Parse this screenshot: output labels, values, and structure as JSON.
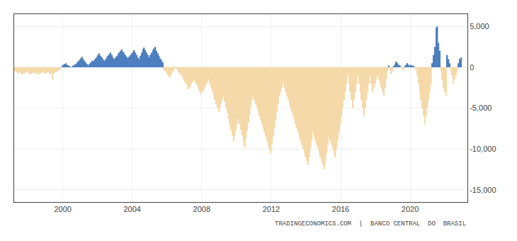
{
  "chart_data": {
    "type": "bar",
    "annotations": [
      "TRADINGECONOMICS.COM  |  BANCO CENTRAL  DO  BRASIL"
    ],
    "x": [
      1997.25,
      1997.3215,
      1997.3931,
      1997.4646,
      1997.5361,
      1997.6076,
      1997.6792,
      1997.7507,
      1997.8222,
      1997.89375,
      1997.9653,
      1998.0368,
      1998.1083,
      1998.1799,
      1998.2514,
      1998.3229,
      1998.3944,
      1998.466,
      1998.5375,
      1998.609,
      1998.6806,
      1998.7521,
      1998.8236,
      1998.8951,
      1998.9667,
      1999.0382,
      1999.1097,
      1999.18125,
      1999.2528,
      1999.3243,
      1999.3958,
      1999.4674,
      1999.5389,
      1999.6104,
      1999.6819,
      1999.7535,
      1999.825,
      1999.8965,
      1999.9681,
      2000.0396,
      2000.1111,
      2000.1826,
      2000.2542,
      2000.3257,
      2000.3972,
      2000.46875,
      2000.5403,
      2000.6118,
      2000.6833,
      2000.7549,
      2000.8264,
      2000.8979,
      2000.9694,
      2001.041,
      2001.1125,
      2001.184,
      2001.2556,
      2001.3271,
      2001.3986,
      2001.4701,
      2001.5417,
      2001.6132,
      2001.6847,
      2001.75625,
      2001.8278,
      2001.8993,
      2001.9708,
      2002.0424,
      2002.1139,
      2002.1854,
      2002.2569,
      2002.3285,
      2002.4,
      2002.4715,
      2002.5431,
      2002.6146,
      2002.6861,
      2002.7576,
      2002.8292,
      2002.9007,
      2002.9722,
      2003.04375,
      2003.1153,
      2003.1868,
      2003.2583,
      2003.3299,
      2003.4014,
      2003.4729,
      2003.5444,
      2003.616,
      2003.6875,
      2003.759,
      2003.8306,
      2003.9021,
      2003.9736,
      2004.0451,
      2004.1167,
      2004.1882,
      2004.2597,
      2004.33125,
      2004.4028,
      2004.4743,
      2004.5458,
      2004.6174,
      2004.6889,
      2004.7604,
      2004.8319,
      2004.9035,
      2004.975,
      2005.0465,
      2005.1181,
      2005.1896,
      2005.2611,
      2005.3326,
      2005.4042,
      2005.4757,
      2005.5472,
      2005.61875,
      2005.6903,
      2005.7618,
      2005.8333,
      2005.9049,
      2005.9764,
      2006.0479,
      2006.1194,
      2006.191,
      2006.2625,
      2006.334,
      2006.4056,
      2006.4771,
      2006.5486,
      2006.6201,
      2006.6917,
      2006.7632,
      2006.8347,
      2006.90625,
      2006.9778,
      2007.0493,
      2007.1208,
      2007.1924,
      2007.2639,
      2007.3354,
      2007.4069,
      2007.4785,
      2007.55,
      2007.6215,
      2007.6931,
      2007.7646,
      2007.8361,
      2007.9076,
      2007.9792,
      2008.0507,
      2008.1222,
      2008.19375,
      2008.2653,
      2008.3368,
      2008.4083,
      2008.4799,
      2008.5514,
      2008.6229,
      2008.6944,
      2008.766,
      2008.8375,
      2008.909,
      2008.9806,
      2009.0521,
      2009.1236,
      2009.1951,
      2009.2667,
      2009.3382,
      2009.4097,
      2009.48125,
      2009.5528,
      2009.6243,
      2009.6958,
      2009.7674,
      2009.8389,
      2009.9104,
      2009.9819,
      2010.0535,
      2010.125,
      2010.1965,
      2010.2681,
      2010.3396,
      2010.4111,
      2010.4826,
      2010.5542,
      2010.6257,
      2010.6972,
      2010.76875,
      2010.8403,
      2010.9118,
      2010.9833,
      2011.0549,
      2011.1264,
      2011.1979,
      2011.2694,
      2011.341,
      2011.4125,
      2011.484,
      2011.5556,
      2011.6271,
      2011.6986,
      2011.7701,
      2011.8417,
      2011.9132,
      2011.9847,
      2012.05625,
      2012.1278,
      2012.1993,
      2012.2708,
      2012.3424,
      2012.4139,
      2012.4854,
      2012.5569,
      2012.6285,
      2012.7,
      2012.7715,
      2012.8431,
      2012.9146,
      2012.9861,
      2013.0576,
      2013.1292,
      2013.2007,
      2013.2722,
      2013.34375,
      2013.4153,
      2013.4868,
      2013.5583,
      2013.6299,
      2013.7014,
      2013.7729,
      2013.8444,
      2013.916,
      2013.9875,
      2014.059,
      2014.1306,
      2014.2021,
      2014.2736,
      2014.3451,
      2014.4167,
      2014.4882,
      2014.5597,
      2014.63125,
      2014.7028,
      2014.7743,
      2014.8458,
      2014.9174,
      2014.9889,
      2015.0604,
      2015.1319,
      2015.2035,
      2015.275,
      2015.3465,
      2015.4181,
      2015.4896,
      2015.5611,
      2015.6326,
      2015.7042,
      2015.7757,
      2015.8472,
      2015.91875,
      2015.9903,
      2016.0618,
      2016.1333,
      2016.2049,
      2016.2764,
      2016.3479,
      2016.4194,
      2016.491,
      2016.5625,
      2016.634,
      2016.7056,
      2016.7771,
      2016.8486,
      2016.9201,
      2016.9917,
      2017.0632,
      2017.1347,
      2017.20625,
      2017.2778,
      2017.3493,
      2017.4208,
      2017.4924,
      2017.5639,
      2017.6354,
      2017.7069,
      2017.7785,
      2017.85,
      2017.9215,
      2017.9931,
      2018.0646,
      2018.1361,
      2018.2076,
      2018.2792,
      2018.3507,
      2018.4222,
      2018.49375,
      2018.5653,
      2018.6368,
      2018.7083,
      2018.7799,
      2018.8514,
      2018.9229,
      2018.9944,
      2019.066,
      2019.1375,
      2019.209,
      2019.2806,
      2019.3521,
      2019.4236,
      2019.4951,
      2019.5667,
      2019.6382,
      2019.7097,
      2019.78125,
      2019.8528,
      2019.9243,
      2019.9958,
      2020.0674,
      2020.1389,
      2020.2104,
      2020.2819,
      2020.3535,
      2020.425,
      2020.4965,
      2020.5681,
      2020.6396,
      2020.7111,
      2020.7826,
      2020.8542,
      2020.9257,
      2020.9972,
      2021.06875,
      2021.1403,
      2021.2118,
      2021.2833,
      2021.3549,
      2021.4264,
      2021.4979,
      2021.5694,
      2021.641,
      2021.7125,
      2021.784,
      2021.8556,
      2021.9271,
      2021.9986,
      2022.0701,
      2022.1417,
      2022.2132,
      2022.2847,
      2022.35625,
      2022.4278,
      2022.4993,
      2022.5708,
      2022.6424,
      2022.7139,
      2022.7854,
      2022.8569,
      2022.9285
    ],
    "values": [
      -500,
      -400,
      -600,
      -800,
      -700,
      -600,
      -900,
      -700,
      -800,
      -600,
      -500,
      -700,
      -800,
      -900,
      -700,
      -600,
      -800,
      -700,
      -500,
      -900,
      -800,
      -700,
      -600,
      -500,
      -700,
      -800,
      -600,
      -500,
      -900,
      -700,
      -1500,
      -800,
      -700,
      -600,
      -500,
      -400,
      -300,
      -200,
      100,
      300,
      400,
      500,
      300,
      200,
      100,
      -100,
      50,
      200,
      300,
      400,
      600,
      700,
      900,
      1100,
      1300,
      1000,
      800,
      600,
      400,
      200,
      400,
      600,
      800,
      700,
      900,
      1100,
      1300,
      1500,
      1700,
      1400,
      1200,
      1000,
      800,
      1000,
      1200,
      1400,
      1600,
      1800,
      1500,
      1200,
      1000,
      1200,
      1400,
      1600,
      1800,
      2000,
      2200,
      1900,
      1700,
      1500,
      1300,
      1100,
      1300,
      1500,
      1700,
      1900,
      2100,
      1800,
      1500,
      1200,
      1000,
      1400,
      1800,
      2200,
      2400,
      2100,
      1800,
      1500,
      1200,
      1500,
      1800,
      2100,
      2300,
      2500,
      2000,
      1700,
      1400,
      1100,
      900,
      600,
      -300,
      -500,
      -700,
      -900,
      -1100,
      -1300,
      -900,
      -600,
      -300,
      -100,
      -200,
      -400,
      -600,
      -800,
      -1000,
      -1200,
      -1500,
      -1800,
      -2100,
      -2400,
      -2700,
      -2400,
      -2100,
      -1800,
      -1500,
      -1800,
      -2100,
      -2400,
      -2700,
      -3000,
      -3300,
      -3000,
      -2700,
      -2400,
      -2100,
      -1800,
      -1500,
      -2000,
      -2500,
      -3000,
      -3500,
      -4000,
      -4500,
      -5000,
      -5500,
      -5000,
      -4500,
      -4000,
      -3500,
      -4200,
      -4900,
      -5600,
      -6300,
      -7000,
      -7700,
      -8400,
      -9100,
      -8400,
      -7700,
      -7000,
      -6300,
      -7000,
      -7700,
      -8400,
      -9100,
      -9800,
      -8800,
      -7800,
      -6800,
      -5800,
      -4800,
      -4000,
      -3500,
      -4000,
      -4500,
      -5000,
      -5500,
      -6000,
      -6500,
      -7000,
      -7500,
      -8000,
      -8500,
      -9000,
      -9500,
      -10000,
      -10500,
      -9500,
      -8500,
      -7500,
      -6500,
      -5500,
      -4500,
      -3500,
      -3000,
      -2500,
      -2000,
      -2500,
      -3000,
      -3500,
      -4000,
      -4500,
      -5000,
      -5500,
      -6000,
      -6500,
      -7000,
      -7500,
      -8000,
      -8500,
      -9000,
      -9500,
      -10000,
      -10500,
      -11000,
      -11500,
      -12000,
      -11000,
      -10000,
      -9000,
      -8000,
      -8500,
      -9000,
      -9500,
      -10000,
      -10500,
      -11000,
      -11500,
      -12000,
      -12500,
      -11500,
      -10500,
      -9500,
      -8500,
      -9000,
      -9500,
      -10000,
      -10500,
      -11000,
      -10000,
      -9000,
      -8000,
      -7000,
      -6000,
      -5000,
      -4000,
      -3000,
      -2000,
      -1000,
      -2000,
      -3000,
      -4000,
      -5000,
      -4000,
      -3000,
      -2000,
      -1000,
      -2000,
      -3000,
      -4000,
      -5000,
      -6000,
      -5000,
      -4000,
      -3000,
      -2000,
      -1000,
      -2000,
      -3000,
      -2500,
      -2000,
      -1500,
      -1000,
      -1500,
      -2000,
      -2500,
      -3000,
      -3500,
      -2500,
      -1500,
      -500,
      200,
      -300,
      -800,
      -400,
      100,
      400,
      700,
      500,
      300,
      200,
      -100,
      -200,
      -400,
      100,
      300,
      500,
      300,
      100,
      300,
      200,
      100,
      -100,
      -200,
      -1000,
      -2000,
      -3000,
      -4000,
      -5000,
      -6000,
      -7000,
      -6000,
      -5000,
      -4000,
      -3000,
      -2000,
      500,
      1500,
      2500,
      4800,
      5000,
      3000,
      2000,
      -500,
      -1500,
      -2500,
      -3000,
      -3500,
      1500,
      1000,
      500,
      -500,
      -1000,
      -2000,
      -1500,
      -1000,
      -500,
      500,
      1000,
      1200
    ],
    "colors": [
      "#f5d9a8",
      "#f5d9a8",
      "#f5d9a8",
      "#f5d9a8",
      "#f5d9a8",
      "#f5d9a8",
      "#f5d9a8",
      "#f5d9a8",
      "#f5d9a8",
      "#f5d9a8",
      "#f5d9a8",
      "#f5d9a8",
      "#f5d9a8",
      "#f5d9a8",
      "#f5d9a8",
      "#f5d9a8",
      "#f5d9a8",
      "#f5d9a8",
      "#f5d9a8",
      "#f5d9a8",
      "#f5d9a8",
      "#f5d9a8",
      "#f5d9a8",
      "#f5d9a8",
      "#f5d9a8",
      "#f5d9a8",
      "#f5d9a8",
      "#f5d9a8",
      "#f5d9a8",
      "#f5d9a8",
      "#f5d9a8",
      "#f5d9a8",
      "#f5d9a8",
      "#f5d9a8",
      "#f5d9a8",
      "#f5d9a8",
      "#f5d9a8",
      "#f5d9a8",
      "#4d7ebf",
      "#4d7ebf",
      "#4d7ebf",
      "#4d7ebf",
      "#4d7ebf",
      "#4d7ebf",
      "#4d7ebf",
      "#f5d9a8",
      "#4d7ebf",
      "#4d7ebf",
      "#4d7ebf",
      "#4d7ebf",
      "#4d7ebf",
      "#4d7ebf",
      "#4d7ebf",
      "#4d7ebf",
      "#4d7ebf",
      "#4d7ebf",
      "#4d7ebf",
      "#4d7ebf",
      "#4d7ebf",
      "#4d7ebf",
      "#4d7ebf",
      "#4d7ebf",
      "#4d7ebf",
      "#4d7ebf",
      "#4d7ebf",
      "#4d7ebf",
      "#4d7ebf",
      "#4d7ebf",
      "#4d7ebf",
      "#4d7ebf",
      "#4d7ebf",
      "#4d7ebf",
      "#4d7ebf",
      "#4d7ebf",
      "#4d7ebf",
      "#4d7ebf",
      "#4d7ebf",
      "#4d7ebf",
      "#4d7ebf",
      "#4d7ebf",
      "#4d7ebf",
      "#4d7ebf",
      "#4d7ebf",
      "#4d7ebf",
      "#4d7ebf",
      "#4d7ebf",
      "#4d7ebf",
      "#4d7ebf",
      "#4d7ebf",
      "#4d7ebf",
      "#4d7ebf",
      "#4d7ebf",
      "#4d7ebf",
      "#4d7ebf",
      "#4d7ebf",
      "#4d7ebf",
      "#4d7ebf",
      "#4d7ebf",
      "#4d7ebf",
      "#4d7ebf",
      "#4d7ebf",
      "#4d7ebf",
      "#4d7ebf",
      "#4d7ebf",
      "#4d7ebf",
      "#4d7ebf",
      "#4d7ebf",
      "#4d7ebf",
      "#4d7ebf",
      "#4d7ebf",
      "#4d7ebf",
      "#4d7ebf",
      "#4d7ebf",
      "#4d7ebf",
      "#4d7ebf",
      "#4d7ebf",
      "#4d7ebf",
      "#4d7ebf",
      "#4d7ebf",
      "#4d7ebf",
      "#f5d9a8",
      "#f5d9a8",
      "#f5d9a8",
      "#f5d9a8",
      "#f5d9a8",
      "#f5d9a8",
      "#f5d9a8",
      "#f5d9a8",
      "#f5d9a8",
      "#f5d9a8",
      "#f5d9a8",
      "#f5d9a8",
      "#f5d9a8",
      "#f5d9a8",
      "#f5d9a8",
      "#f5d9a8",
      "#f5d9a8",
      "#f5d9a8",
      "#f5d9a8",
      "#f5d9a8",
      "#f5d9a8",
      "#f5d9a8",
      "#f5d9a8",
      "#f5d9a8",
      "#f5d9a8",
      "#f5d9a8",
      "#f5d9a8",
      "#f5d9a8",
      "#f5d9a8",
      "#f5d9a8",
      "#f5d9a8",
      "#f5d9a8",
      "#f5d9a8",
      "#f5d9a8",
      "#f5d9a8",
      "#f5d9a8",
      "#f5d9a8",
      "#f5d9a8",
      "#f5d9a8",
      "#f5d9a8",
      "#f5d9a8",
      "#f5d9a8",
      "#f5d9a8",
      "#f5d9a8",
      "#f5d9a8",
      "#f5d9a8",
      "#f5d9a8",
      "#f5d9a8",
      "#f5d9a8",
      "#f5d9a8",
      "#f5d9a8",
      "#f5d9a8",
      "#f5d9a8",
      "#f5d9a8",
      "#f5d9a8",
      "#f5d9a8",
      "#f5d9a8",
      "#f5d9a8",
      "#f5d9a8",
      "#f5d9a8",
      "#f5d9a8",
      "#f5d9a8",
      "#f5d9a8",
      "#f5d9a8",
      "#f5d9a8",
      "#f5d9a8",
      "#f5d9a8",
      "#f5d9a8",
      "#f5d9a8",
      "#f5d9a8",
      "#f5d9a8",
      "#f5d9a8",
      "#f5d9a8",
      "#f5d9a8",
      "#f5d9a8",
      "#f5d9a8",
      "#f5d9a8",
      "#f5d9a8",
      "#f5d9a8",
      "#f5d9a8",
      "#f5d9a8",
      "#f5d9a8",
      "#f5d9a8",
      "#f5d9a8",
      "#f5d9a8",
      "#f5d9a8",
      "#f5d9a8",
      "#f5d9a8",
      "#f5d9a8",
      "#f5d9a8",
      "#f5d9a8",
      "#f5d9a8",
      "#f5d9a8",
      "#f5d9a8",
      "#f5d9a8",
      "#f5d9a8",
      "#f5d9a8",
      "#f5d9a8",
      "#f5d9a8",
      "#f5d9a8",
      "#f5d9a8",
      "#f5d9a8",
      "#f5d9a8",
      "#f5d9a8",
      "#f5d9a8",
      "#f5d9a8",
      "#f5d9a8",
      "#f5d9a8",
      "#f5d9a8",
      "#f5d9a8",
      "#f5d9a8",
      "#f5d9a8",
      "#f5d9a8",
      "#f5d9a8",
      "#f5d9a8",
      "#f5d9a8",
      "#f5d9a8",
      "#f5d9a8",
      "#f5d9a8",
      "#f5d9a8",
      "#f5d9a8",
      "#f5d9a8",
      "#f5d9a8",
      "#f5d9a8",
      "#f5d9a8",
      "#f5d9a8",
      "#f5d9a8",
      "#f5d9a8",
      "#f5d9a8",
      "#f5d9a8",
      "#f5d9a8",
      "#f5d9a8",
      "#f5d9a8",
      "#f5d9a8",
      "#f5d9a8",
      "#f5d9a8",
      "#f5d9a8",
      "#f5d9a8",
      "#f5d9a8",
      "#f5d9a8",
      "#f5d9a8",
      "#f5d9a8",
      "#f5d9a8",
      "#f5d9a8",
      "#f5d9a8",
      "#f5d9a8",
      "#f5d9a8",
      "#f5d9a8",
      "#f5d9a8",
      "#f5d9a8",
      "#f5d9a8",
      "#f5d9a8",
      "#f5d9a8",
      "#f5d9a8",
      "#f5d9a8",
      "#f5d9a8",
      "#f5d9a8",
      "#f5d9a8",
      "#f5d9a8",
      "#f5d9a8",
      "#f5d9a8",
      "#f5d9a8",
      "#f5d9a8",
      "#f5d9a8",
      "#f5d9a8",
      "#f5d9a8",
      "#f5d9a8",
      "#f5d9a8",
      "#f5d9a8",
      "#f5d9a8",
      "#f5d9a8",
      "#f5d9a8",
      "#f5d9a8",
      "#f5d9a8",
      "#f5d9a8",
      "#f5d9a8",
      "#f5d9a8",
      "#f5d9a8",
      "#f5d9a8",
      "#f5d9a8",
      "#f5d9a8",
      "#4d7ebf",
      "#f5d9a8",
      "#f5d9a8",
      "#f5d9a8",
      "#4d7ebf",
      "#4d7ebf",
      "#4d7ebf",
      "#4d7ebf",
      "#4d7ebf",
      "#4d7ebf",
      "#f5d9a8",
      "#f5d9a8",
      "#f5d9a8",
      "#4d7ebf",
      "#4d7ebf",
      "#4d7ebf",
      "#4d7ebf",
      "#4d7ebf",
      "#4d7ebf",
      "#4d7ebf",
      "#4d7ebf",
      "#f5d9a8",
      "#f5d9a8",
      "#f5d9a8",
      "#f5d9a8",
      "#f5d9a8",
      "#f5d9a8",
      "#f5d9a8",
      "#f5d9a8",
      "#f5d9a8",
      "#f5d9a8",
      "#f5d9a8",
      "#f5d9a8",
      "#f5d9a8",
      "#f5d9a8",
      "#4d7ebf",
      "#4d7ebf",
      "#4d7ebf",
      "#4d7ebf",
      "#4d7ebf",
      "#4d7ebf",
      "#4d7ebf",
      "#f5d9a8",
      "#f5d9a8",
      "#f5d9a8",
      "#f5d9a8",
      "#f5d9a8",
      "#4d7ebf",
      "#4d7ebf",
      "#4d7ebf",
      "#f5d9a8",
      "#f5d9a8",
      "#f5d9a8",
      "#f5d9a8",
      "#f5d9a8",
      "#f5d9a8",
      "#4d7ebf",
      "#4d7ebf",
      "#4d7ebf"
    ],
    "xlim": [
      1997.2,
      2023.3
    ],
    "xticks": [
      2000,
      2004,
      2008,
      2012,
      2016,
      2020
    ],
    "ylim": [
      -16500,
      6500
    ],
    "yticks": [
      {
        "value": 5000,
        "label": "5,000"
      },
      0,
      {
        "value": -5000,
        "label": "-5,000"
      },
      {
        "value": -10000,
        "label": "-10,000"
      },
      {
        "value": -15000,
        "label": "-15,000"
      }
    ],
    "grid": true
  }
}
